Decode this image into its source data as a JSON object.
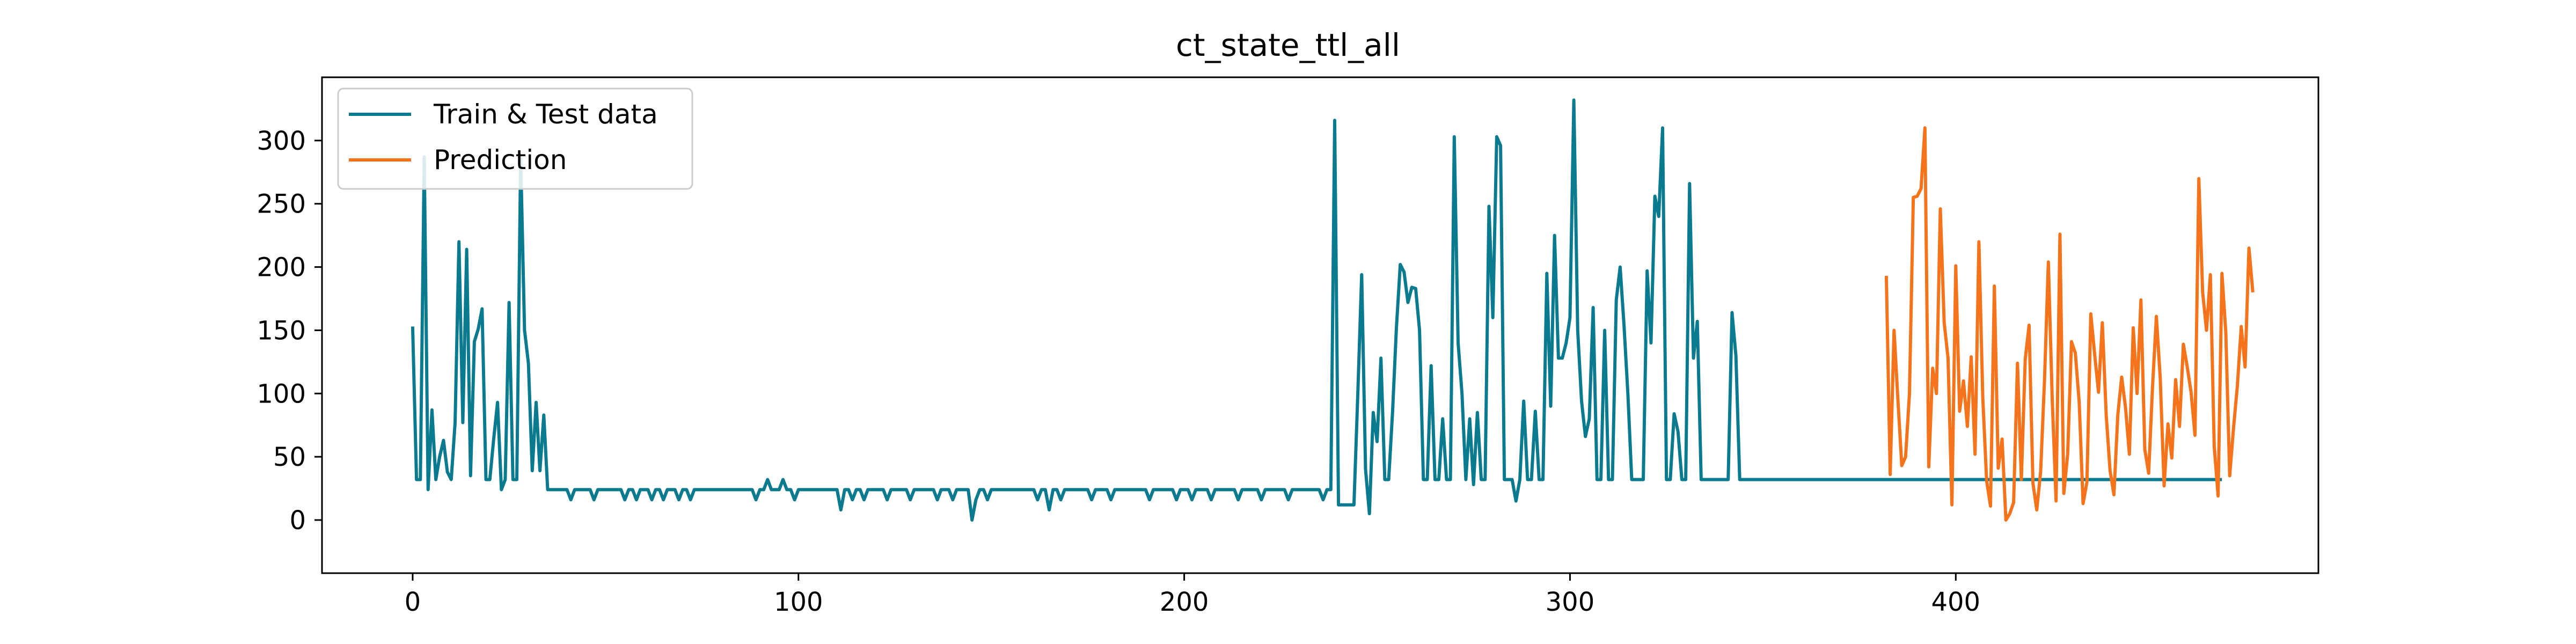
{
  "chart_data": {
    "type": "line",
    "title": "ct_state_ttl_all",
    "xlabel": "",
    "ylabel": "",
    "xlim": [
      -23.5,
      494
    ],
    "ylim": [
      -42,
      350
    ],
    "xticks": [
      0,
      100,
      200,
      300,
      400
    ],
    "yticks": [
      0,
      50,
      100,
      150,
      200,
      250,
      300
    ],
    "grid": false,
    "legend_position": "top-left",
    "series": [
      {
        "name": "Train & Test data",
        "color": "#0a7a8f",
        "x_start": 0,
        "values": [
          153,
          32,
          32,
          287,
          24,
          87,
          32,
          50,
          63,
          38,
          32,
          77,
          220,
          77,
          214,
          35,
          141,
          151,
          167,
          32,
          32,
          64,
          93,
          24,
          32,
          172,
          32,
          32,
          287,
          150,
          124,
          39,
          93,
          39,
          83,
          24,
          24,
          24,
          24,
          24,
          24,
          16,
          24,
          24,
          24,
          24,
          24,
          16,
          24,
          24,
          24,
          24,
          24,
          24,
          24,
          16,
          24,
          24,
          16,
          24,
          24,
          24,
          16,
          24,
          24,
          16,
          24,
          24,
          24,
          16,
          24,
          24,
          16,
          24,
          24,
          24,
          24,
          24,
          24,
          24,
          24,
          24,
          24,
          24,
          24,
          24,
          24,
          24,
          24,
          16,
          24,
          24,
          32,
          24,
          24,
          24,
          32,
          24,
          24,
          16,
          24,
          24,
          24,
          24,
          24,
          24,
          24,
          24,
          24,
          24,
          24,
          8,
          24,
          24,
          16,
          24,
          24,
          16,
          24,
          24,
          24,
          24,
          24,
          16,
          24,
          24,
          24,
          24,
          24,
          16,
          24,
          24,
          24,
          24,
          24,
          24,
          16,
          24,
          24,
          24,
          16,
          24,
          24,
          24,
          24,
          0,
          16,
          24,
          24,
          16,
          24,
          24,
          24,
          24,
          24,
          24,
          24,
          24,
          24,
          24,
          24,
          24,
          16,
          24,
          24,
          8,
          24,
          24,
          16,
          24,
          24,
          24,
          24,
          24,
          24,
          24,
          16,
          24,
          24,
          24,
          24,
          16,
          24,
          24,
          24,
          24,
          24,
          24,
          24,
          24,
          24,
          16,
          24,
          24,
          24,
          24,
          24,
          24,
          16,
          24,
          24,
          24,
          16,
          24,
          24,
          24,
          24,
          16,
          24,
          24,
          24,
          24,
          24,
          24,
          16,
          24,
          24,
          24,
          24,
          24,
          16,
          24,
          24,
          24,
          24,
          24,
          24,
          16,
          24,
          24,
          24,
          24,
          24,
          24,
          24,
          24,
          16,
          24,
          24,
          316,
          12,
          12,
          12,
          12,
          12,
          100,
          194,
          40,
          5,
          85,
          62,
          128,
          32,
          32,
          85,
          152,
          202,
          196,
          172,
          184,
          183,
          150,
          32,
          32,
          122,
          32,
          32,
          80,
          32,
          32,
          303,
          140,
          100,
          32,
          80,
          28,
          85,
          32,
          32,
          248,
          160,
          303,
          296,
          32,
          32,
          32,
          15,
          32,
          94,
          32,
          32,
          86,
          32,
          32,
          195,
          90,
          225,
          128,
          128,
          140,
          160,
          332,
          150,
          94,
          66,
          80,
          168,
          32,
          32,
          150,
          32,
          32,
          174,
          200,
          154,
          100,
          32,
          32,
          32,
          32,
          197,
          140,
          256,
          240,
          310,
          32,
          32,
          84,
          70,
          32,
          32,
          266,
          128,
          157,
          32,
          32,
          32,
          32,
          32,
          32,
          32,
          32,
          164,
          130,
          32,
          32,
          32,
          32,
          32,
          32,
          32,
          32,
          32,
          32,
          32,
          32,
          32,
          32,
          32,
          32,
          32,
          32,
          32,
          32,
          32,
          32,
          32,
          32,
          32,
          32,
          32,
          32,
          32,
          32,
          32,
          32,
          32,
          32,
          32,
          32,
          32,
          32,
          32,
          32,
          32,
          32,
          32,
          32,
          32,
          32,
          32,
          32,
          32,
          32,
          32,
          32,
          32,
          32,
          32,
          32,
          32,
          32,
          32,
          32,
          32,
          32,
          32,
          32,
          32,
          32,
          32,
          32,
          32,
          32,
          32,
          32,
          32,
          32,
          32,
          32,
          32,
          32,
          32,
          32,
          32,
          32,
          32,
          32,
          32,
          32,
          32,
          32,
          32,
          32,
          32,
          32,
          32,
          32,
          32,
          32,
          32,
          32,
          32,
          32,
          32,
          32,
          32,
          32,
          32,
          32,
          32,
          32,
          32,
          32,
          32,
          32,
          32,
          32,
          32,
          32,
          32,
          32,
          32,
          32,
          32,
          32,
          32,
          32,
          32,
          32
        ]
      },
      {
        "name": "Prediction",
        "color": "#f5731a",
        "x_start": 382,
        "values": [
          193,
          36,
          150,
          95,
          43,
          50,
          100,
          255,
          256,
          262,
          310,
          42,
          120,
          100,
          246,
          156,
          128,
          12,
          201,
          86,
          110,
          74,
          129,
          52,
          220,
          97,
          31,
          11,
          185,
          41,
          64,
          0,
          5,
          14,
          124,
          32,
          127,
          154,
          29,
          8,
          38,
          110,
          204,
          96,
          15,
          226,
          21,
          52,
          141,
          132,
          93,
          13,
          30,
          163,
          131,
          101,
          156,
          83,
          39,
          20,
          83,
          113,
          89,
          52,
          152,
          100,
          174,
          56,
          37,
          105,
          161,
          112,
          27,
          76,
          49,
          111,
          74,
          139,
          121,
          101,
          67,
          270,
          180,
          150,
          194,
          58,
          19,
          195,
          148,
          35,
          73,
          106,
          153,
          121,
          215,
          180
        ]
      }
    ]
  }
}
